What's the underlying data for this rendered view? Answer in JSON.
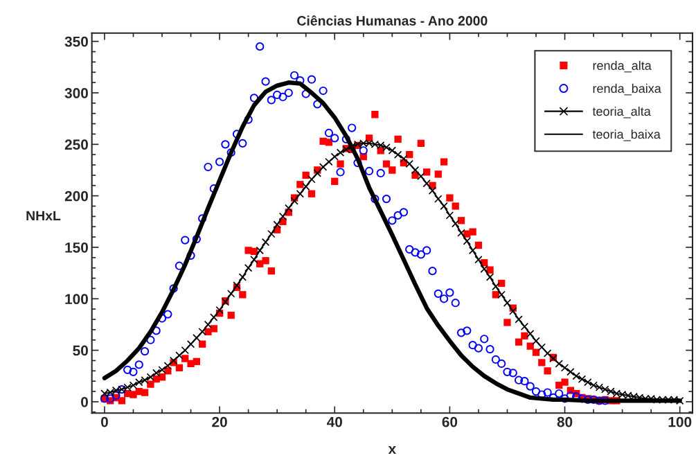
{
  "chart_data": {
    "type": "scatter",
    "title": "Ciências Humanas - Ano 2000",
    "xlabel": "x",
    "ylabel": "NHxL",
    "xlim": [
      -2.2,
      102.2
    ],
    "ylim": [
      -11,
      358
    ],
    "xticks": [
      0,
      20,
      40,
      60,
      80,
      100
    ],
    "yticks": [
      0,
      50,
      100,
      150,
      200,
      250,
      300,
      350
    ],
    "grid": false,
    "legend": "top right",
    "series": [
      {
        "name": "renda_alta",
        "marker": "square",
        "color": "#ff0000",
        "x": [
          0,
          1,
          2,
          3,
          4,
          5,
          6,
          7,
          8,
          9,
          10,
          11,
          12,
          13,
          14,
          15,
          16,
          17,
          18,
          19,
          20,
          21,
          22,
          23,
          24,
          25,
          26,
          27,
          28,
          29,
          30,
          31,
          32,
          33,
          34,
          35,
          36,
          37,
          38,
          39,
          40,
          41,
          42,
          43,
          44,
          45,
          46,
          47,
          48,
          49,
          50,
          51,
          52,
          53,
          54,
          55,
          56,
          57,
          58,
          59,
          60,
          61,
          62,
          63,
          64,
          65,
          66,
          67,
          68,
          69,
          70,
          71,
          72,
          73,
          74,
          75,
          76,
          77,
          78,
          79,
          80,
          81,
          82,
          83,
          84,
          85,
          86,
          87,
          88,
          89
        ],
        "values": [
          3,
          1,
          4,
          1,
          8,
          7,
          10,
          9,
          17,
          22,
          24,
          30,
          38,
          33,
          42,
          37,
          39,
          56,
          68,
          71,
          86,
          98,
          84,
          111,
          104,
          147,
          146,
          134,
          137,
          127,
          167,
          175,
          184,
          198,
          211,
          220,
          202,
          225,
          253,
          252,
          214,
          231,
          246,
          245,
          249,
          238,
          256,
          279,
          244,
          231,
          225,
          255,
          232,
          240,
          220,
          251,
          223,
          210,
          221,
          233,
          198,
          190,
          176,
          163,
          165,
          152,
          135,
          128,
          104,
          115,
          77,
          91,
          58,
          64,
          54,
          48,
          38,
          30,
          43,
          16,
          19,
          11,
          8,
          4,
          3,
          2,
          1,
          2,
          1,
          1
        ]
      },
      {
        "name": "renda_baixa",
        "marker": "circle",
        "color": "#0000ff",
        "x": [
          0,
          1,
          2,
          3,
          4,
          5,
          6,
          7,
          8,
          9,
          10,
          11,
          12,
          13,
          14,
          15,
          16,
          17,
          18,
          19,
          20,
          21,
          22,
          23,
          24,
          25,
          26,
          27,
          28,
          29,
          30,
          31,
          32,
          33,
          34,
          35,
          36,
          37,
          38,
          39,
          40,
          41,
          42,
          43,
          44,
          45,
          46,
          47,
          48,
          49,
          50,
          51,
          52,
          53,
          54,
          55,
          56,
          57,
          58,
          59,
          60,
          61,
          62,
          63,
          64,
          65,
          66,
          67,
          68,
          69,
          70,
          71,
          72,
          73,
          74,
          75,
          76,
          77,
          78,
          79,
          80,
          81,
          82,
          83,
          84,
          85,
          86,
          87
        ],
        "values": [
          3,
          3,
          6,
          12,
          31,
          29,
          36,
          49,
          60,
          69,
          81,
          85,
          110,
          132,
          157,
          142,
          158,
          178,
          228,
          207,
          233,
          250,
          242,
          260,
          251,
          274,
          295,
          345,
          311,
          293,
          298,
          296,
          300,
          317,
          312,
          299,
          313,
          289,
          302,
          261,
          256,
          223,
          255,
          266,
          232,
          244,
          224,
          197,
          222,
          197,
          176,
          181,
          184,
          148,
          145,
          143,
          147,
          127,
          105,
          100,
          106,
          96,
          67,
          69,
          55,
          52,
          61,
          51,
          41,
          37,
          29,
          28,
          21,
          20,
          15,
          10,
          7,
          9,
          4,
          8,
          3,
          6,
          5,
          3,
          2,
          2,
          1,
          1
        ]
      },
      {
        "name": "teoria_alta",
        "type": "line",
        "marker": "cross",
        "color": "#000000",
        "x": [
          0,
          1,
          2,
          3,
          4,
          5,
          6,
          7,
          8,
          9,
          10,
          11,
          12,
          13,
          14,
          15,
          16,
          17,
          18,
          19,
          20,
          21,
          22,
          23,
          24,
          25,
          26,
          27,
          28,
          29,
          30,
          31,
          32,
          33,
          34,
          35,
          36,
          37,
          38,
          39,
          40,
          41,
          42,
          43,
          44,
          45,
          46,
          47,
          48,
          49,
          50,
          51,
          52,
          53,
          54,
          55,
          56,
          57,
          58,
          59,
          60,
          61,
          62,
          63,
          64,
          65,
          66,
          67,
          68,
          69,
          70,
          71,
          72,
          73,
          74,
          75,
          76,
          77,
          78,
          79,
          80,
          81,
          82,
          83,
          84,
          85,
          86,
          87,
          88,
          89,
          90,
          91,
          92,
          93,
          94,
          95,
          96,
          97,
          98,
          99,
          100
        ],
        "values": [
          8,
          9,
          11,
          12,
          14,
          16,
          19,
          21,
          24,
          28,
          31,
          35,
          40,
          45,
          50,
          56,
          62,
          68,
          75,
          82,
          89,
          97,
          105,
          113,
          121,
          130,
          138,
          147,
          155,
          163,
          172,
          180,
          188,
          195,
          202,
          209,
          216,
          222,
          228,
          233,
          238,
          242,
          245,
          248,
          250,
          251,
          251,
          250,
          249,
          247,
          244,
          240,
          236,
          231,
          225,
          219,
          212,
          205,
          197,
          190,
          181,
          173,
          164,
          156,
          147,
          138,
          129,
          121,
          112,
          104,
          96,
          88,
          80,
          73,
          66,
          59,
          53,
          47,
          42,
          37,
          33,
          29,
          25,
          22,
          19,
          16,
          14,
          12,
          10,
          8,
          7,
          6,
          5,
          4,
          3,
          3,
          2,
          2,
          2,
          2,
          1
        ]
      },
      {
        "name": "teoria_baixa",
        "type": "line",
        "marker": "none",
        "color": "#000000",
        "x": [
          0,
          2,
          4,
          6,
          8,
          10,
          12,
          14,
          16,
          18,
          20,
          22,
          24,
          26,
          28,
          30,
          32,
          34,
          36,
          38,
          40,
          42,
          44,
          46,
          48,
          50,
          52,
          54,
          56,
          58,
          60,
          62,
          64,
          66,
          68,
          70,
          72,
          74,
          76,
          78,
          80,
          84,
          88,
          92,
          96,
          100
        ],
        "values": [
          23,
          30,
          40,
          52,
          68,
          87,
          109,
          133,
          160,
          188,
          215,
          242,
          267,
          288,
          301,
          307,
          310,
          309,
          300,
          290,
          276,
          258,
          236,
          208,
          185,
          162,
          138,
          114,
          91,
          74,
          59,
          45,
          34,
          25,
          18,
          12,
          8,
          4,
          3,
          2,
          2,
          1,
          1,
          1,
          1,
          1
        ]
      }
    ]
  }
}
